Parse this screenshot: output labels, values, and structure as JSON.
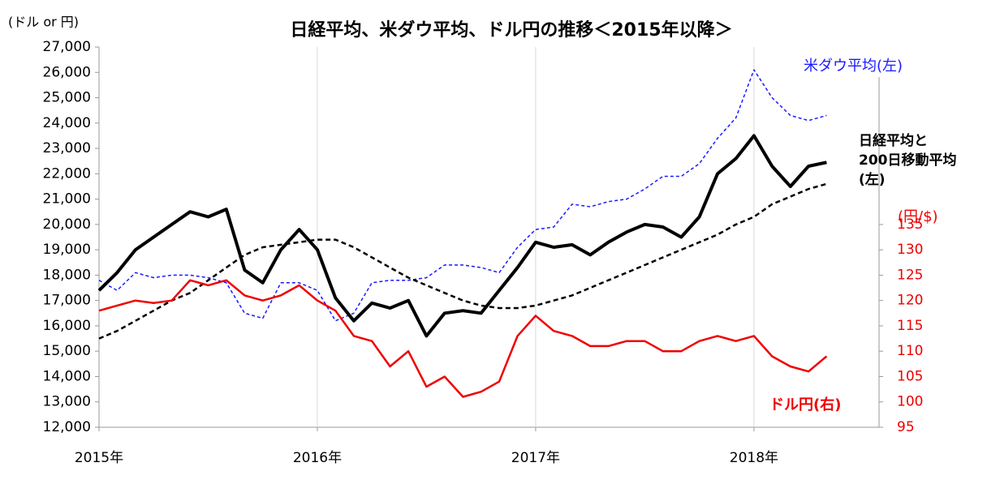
{
  "chart_data": {
    "type": "line",
    "title": "日経平均、米ダウ平均、ドル円の推移＜2015年以降＞",
    "y_label": "(ドル or 円)",
    "y2_label": "(円/$)",
    "annotation_lines": [
      "日経平均と",
      "200日移動平均",
      "(左)"
    ],
    "x": [
      2015,
      2015.083,
      2015.167,
      2015.25,
      2015.333,
      2015.417,
      2015.5,
      2015.583,
      2015.667,
      2015.75,
      2015.833,
      2015.917,
      2016,
      2016.083,
      2016.167,
      2016.25,
      2016.333,
      2016.417,
      2016.5,
      2016.583,
      2016.667,
      2016.75,
      2016.833,
      2016.917,
      2017,
      2017.083,
      2017.167,
      2017.25,
      2017.333,
      2017.417,
      2017.5,
      2017.583,
      2017.667,
      2017.75,
      2017.833,
      2017.917,
      2018,
      2018.083,
      2018.167,
      2018.25,
      2018.333
    ],
    "xlim": [
      2015,
      2018.573
    ],
    "xticks": [
      {
        "value": 2015,
        "label": "2015年"
      },
      {
        "value": 2016,
        "label": "2016年"
      },
      {
        "value": 2017,
        "label": "2017年"
      },
      {
        "value": 2018,
        "label": "2018年"
      }
    ],
    "ylim": [
      12000,
      27000
    ],
    "yticks": [
      {
        "value": 12000,
        "label": "12,000"
      },
      {
        "value": 13000,
        "label": "13,000"
      },
      {
        "value": 14000,
        "label": "14,000"
      },
      {
        "value": 15000,
        "label": "15,000"
      },
      {
        "value": 16000,
        "label": "16,000"
      },
      {
        "value": 17000,
        "label": "17,000"
      },
      {
        "value": 18000,
        "label": "18,000"
      },
      {
        "value": 19000,
        "label": "19,000"
      },
      {
        "value": 20000,
        "label": "20,000"
      },
      {
        "value": 21000,
        "label": "21,000"
      },
      {
        "value": 22000,
        "label": "22,000"
      },
      {
        "value": 23000,
        "label": "23,000"
      },
      {
        "value": 24000,
        "label": "24,000"
      },
      {
        "value": 25000,
        "label": "25,000"
      },
      {
        "value": 26000,
        "label": "26,000"
      },
      {
        "value": 27000,
        "label": "27,000"
      }
    ],
    "y2lim": [
      95,
      170
    ],
    "y2ticks": [
      95,
      100,
      105,
      110,
      115,
      120,
      125,
      130,
      135
    ],
    "grid": "x",
    "series": [
      {
        "name": "米ダウ平均(左)",
        "color": "#1a1aff",
        "style": "dashed",
        "width": 1.5,
        "values": [
          17800,
          17400,
          18100,
          17900,
          18000,
          18000,
          17900,
          17700,
          16500,
          16300,
          17700,
          17700,
          17400,
          16200,
          16500,
          17700,
          17800,
          17800,
          17900,
          18400,
          18400,
          18300,
          18100,
          19100,
          19800,
          19900,
          20800,
          20700,
          20900,
          21000,
          21400,
          21900,
          21900,
          22400,
          23400,
          24200,
          26100,
          25000,
          24300,
          24100,
          24300
        ]
      },
      {
        "color": "#000000",
        "style": "dashed",
        "width": 2.5,
        "values": [
          15500,
          15800,
          16200,
          16600,
          17000,
          17300,
          17800,
          18300,
          18800,
          19100,
          19200,
          19300,
          19400,
          19400,
          19100,
          18700,
          18300,
          17900,
          17600,
          17300,
          17000,
          16800,
          16700,
          16700,
          16800,
          17000,
          17200,
          17500,
          17800,
          18100,
          18400,
          18700,
          19000,
          19300,
          19600,
          20000,
          20300,
          20800,
          21100,
          21400,
          21600
        ]
      },
      {
        "color": "#000000",
        "style": "solid",
        "width": 4,
        "values": [
          17400,
          18100,
          19000,
          19500,
          20000,
          20500,
          20300,
          20600,
          18200,
          17700,
          19000,
          19800,
          19000,
          17100,
          16200,
          16900,
          16700,
          17000,
          15600,
          16500,
          16600,
          16500,
          17400,
          18300,
          19300,
          19100,
          19200,
          18800,
          19300,
          19700,
          20000,
          19900,
          19500,
          20300,
          22000,
          22600,
          23500,
          22300,
          21500,
          22300,
          22450
        ]
      },
      {
        "name": "ドル円(右)",
        "color": "#ee0000",
        "style": "solid",
        "width": 2.5,
        "axis": "y2",
        "values": [
          118,
          119,
          120,
          119.5,
          120,
          124,
          123,
          124,
          121,
          120,
          121,
          123,
          120,
          118,
          113,
          112,
          107,
          110,
          103,
          105,
          101,
          102,
          104,
          113,
          117,
          114,
          113,
          111,
          111,
          112,
          112,
          110,
          110,
          112,
          113,
          112,
          113,
          109,
          107,
          106,
          109
        ]
      }
    ]
  }
}
